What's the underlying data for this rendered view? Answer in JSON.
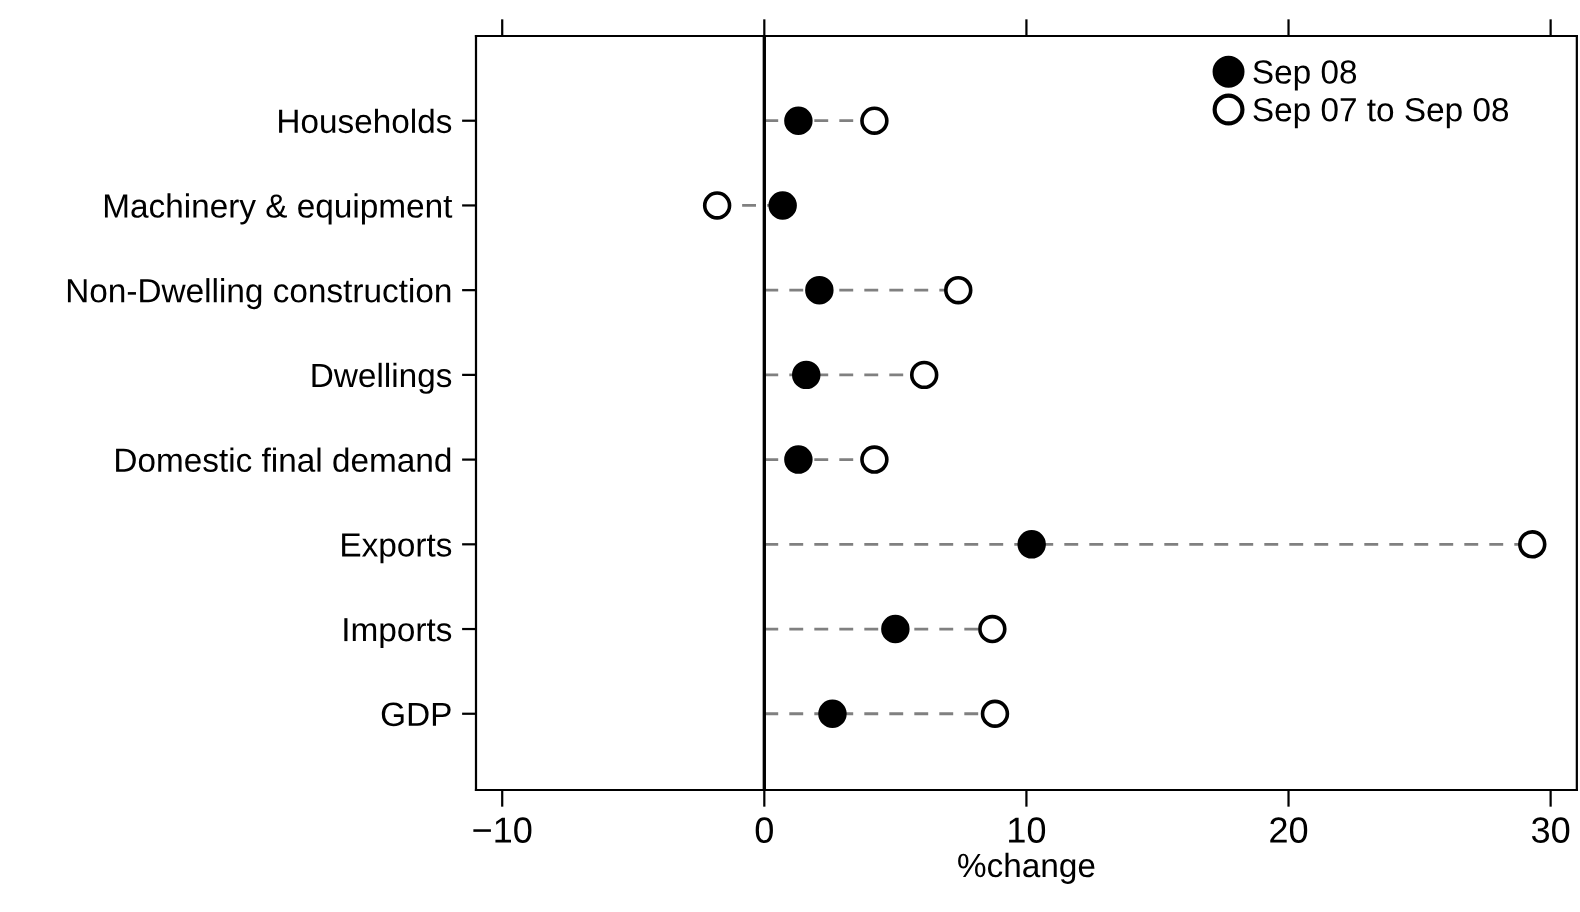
{
  "chart_data": {
    "type": "scatter",
    "orientation": "horizontal",
    "xlabel": "%change",
    "categories": [
      "Households",
      "Machinery & equipment",
      "Non-Dwelling construction",
      "Dwellings",
      "Domestic final demand",
      "Exports",
      "Imports",
      "GDP"
    ],
    "series": [
      {
        "name": "Sep 08",
        "color": "#000000",
        "values": [
          1.3,
          0.7,
          2.1,
          1.6,
          1.3,
          10.2,
          5.0,
          2.6
        ]
      },
      {
        "name": "Sep 07 to Sep 08",
        "color": "#000000",
        "values": [
          4.2,
          -1.8,
          7.4,
          6.1,
          4.2,
          29.3,
          8.7,
          8.8
        ]
      }
    ],
    "xlim": [
      -11,
      31
    ],
    "xticks": [
      {
        "value": -10,
        "label": "−10"
      },
      0,
      10,
      20,
      30
    ],
    "ref_lines": [
      {
        "axis": "x",
        "value": 0,
        "color": "#000000"
      }
    ],
    "grid": false,
    "marker": "circle",
    "legend": "top right"
  }
}
